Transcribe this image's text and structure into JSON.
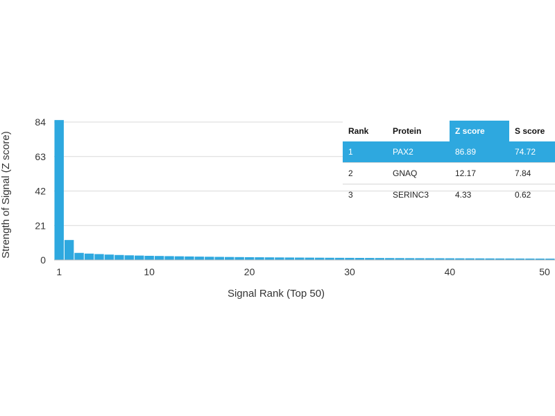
{
  "chart_data": {
    "type": "bar",
    "title": "",
    "xlabel": "Signal Rank (Top 50)",
    "ylabel": "Strength of Signal (Z score)",
    "ylim": [
      0,
      84
    ],
    "xlim": [
      0.5,
      50.5
    ],
    "yticks": [
      0,
      21,
      42,
      63,
      84
    ],
    "xticks": [
      1,
      10,
      20,
      30,
      40,
      50
    ],
    "grid": "horizontal",
    "bar_color": "#2ea8df",
    "x": [
      1,
      2,
      3,
      4,
      5,
      6,
      7,
      8,
      9,
      10,
      11,
      12,
      13,
      14,
      15,
      16,
      17,
      18,
      19,
      20,
      21,
      22,
      23,
      24,
      25,
      26,
      27,
      28,
      29,
      30,
      31,
      32,
      33,
      34,
      35,
      36,
      37,
      38,
      39,
      40,
      41,
      42,
      43,
      44,
      45,
      46,
      47,
      48,
      49,
      50
    ],
    "values": [
      86.89,
      12.17,
      4.33,
      3.9,
      3.6,
      3.3,
      3.05,
      2.85,
      2.7,
      2.55,
      2.45,
      2.35,
      2.25,
      2.15,
      2.05,
      1.97,
      1.9,
      1.83,
      1.77,
      1.71,
      1.66,
      1.61,
      1.56,
      1.52,
      1.48,
      1.44,
      1.4,
      1.36,
      1.33,
      1.3,
      1.27,
      1.24,
      1.21,
      1.18,
      1.15,
      1.12,
      1.1,
      1.08,
      1.06,
      1.04,
      1.02,
      1.0,
      0.98,
      0.96,
      0.94,
      0.92,
      0.9,
      0.88,
      0.86,
      0.84
    ]
  },
  "table": {
    "headers": [
      "Rank",
      "Protein",
      "Z score",
      "S score"
    ],
    "highlight_color": "#2ea8df",
    "rows": [
      {
        "rank": "1",
        "protein": "PAX2",
        "z": "86.89",
        "s": "74.72"
      },
      {
        "rank": "2",
        "protein": "GNAQ",
        "z": "12.17",
        "s": "7.84"
      },
      {
        "rank": "3",
        "protein": "SERINC3",
        "z": "4.33",
        "s": "0.62"
      }
    ]
  }
}
